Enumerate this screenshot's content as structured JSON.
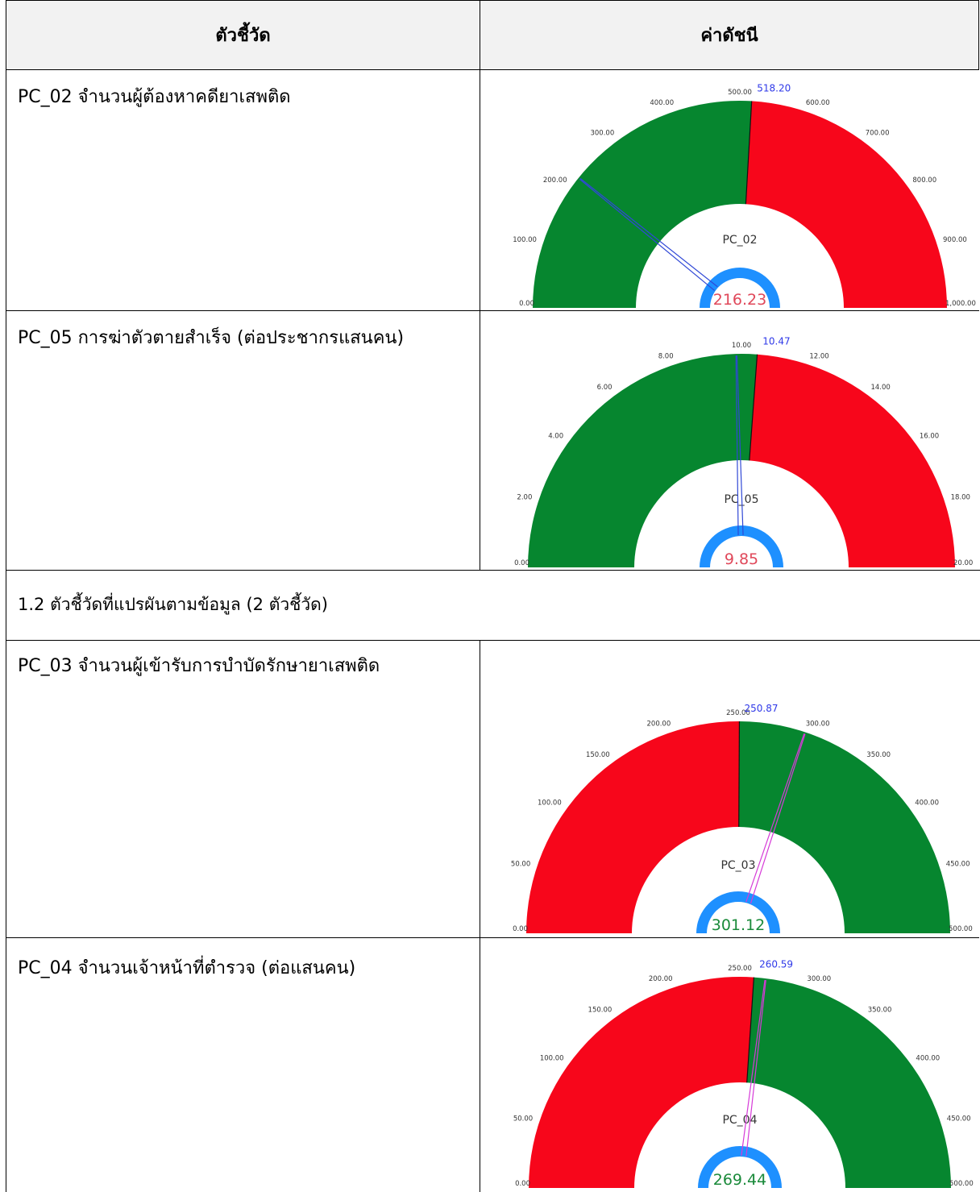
{
  "header": {
    "indicator": "ตัวชี้วัด",
    "value": "ค่าดัชนี"
  },
  "section_title": "1.2 ตัวชี้วัดที่แปรผันตามข้อมูล (2 ตัวชี้วัด)",
  "rows": [
    {
      "label": "PC_02 จำนวนผู้ต้องหาคดียาเสพติด"
    },
    {
      "label": "PC_05 การฆ่าตัวตายสำเร็จ (ต่อประชากรแสนคน)"
    },
    {
      "label": "PC_03 จำนวนผู้เข้ารับการบำบัดรักษายาเสพติด"
    },
    {
      "label": "PC_04 จำนวนเจ้าหน้าที่ตำรวจ (ต่อแสนคน)"
    }
  ],
  "chart_data": [
    {
      "type": "gauge",
      "code": "PC_02",
      "min": 0,
      "max": 1000,
      "ticks": [
        "0.00",
        "100.00",
        "200.00",
        "300.00",
        "400.00",
        "500.00",
        "600.00",
        "700.00",
        "800.00",
        "900.00",
        "1,000.00"
      ],
      "target": 518.2,
      "target_label": "518.20",
      "value": 216.23,
      "value_label": "216.23",
      "low_color": "#06862f",
      "high_color": "#f7061b",
      "needle_color": "#3048d6",
      "value_color": "#e0485a"
    },
    {
      "type": "gauge",
      "code": "PC_05",
      "min": 0,
      "max": 20,
      "ticks": [
        "0.00",
        "2.00",
        "4.00",
        "6.00",
        "8.00",
        "10.00",
        "12.00",
        "14.00",
        "16.00",
        "18.00",
        "20.00"
      ],
      "target": 10.47,
      "target_label": "10.47",
      "value": 9.85,
      "value_label": "9.85",
      "low_color": "#06862f",
      "high_color": "#f7061b",
      "needle_color": "#3048d6",
      "value_color": "#e0485a"
    },
    {
      "type": "gauge",
      "code": "PC_03",
      "min": 0,
      "max": 500,
      "ticks": [
        "0.00",
        "50.00",
        "100.00",
        "150.00",
        "200.00",
        "250.00",
        "300.00",
        "350.00",
        "400.00",
        "450.00",
        "500.00"
      ],
      "target": 250.87,
      "target_label": "250.87",
      "value": 301.12,
      "value_label": "301.12",
      "low_color": "#f7061b",
      "high_color": "#06862f",
      "needle_color": "#d63ad8",
      "value_color": "#1a8a3a"
    },
    {
      "type": "gauge",
      "code": "PC_04",
      "min": 0,
      "max": 500,
      "ticks": [
        "0.00",
        "50.00",
        "100.00",
        "150.00",
        "200.00",
        "250.00",
        "300.00",
        "350.00",
        "400.00",
        "450.00",
        "500.00"
      ],
      "target": 260.59,
      "target_label": "260.59",
      "value": 269.44,
      "value_label": "269.44",
      "low_color": "#f7061b",
      "high_color": "#06862f",
      "needle_color": "#d63ad8",
      "value_color": "#1a8a3a"
    }
  ]
}
